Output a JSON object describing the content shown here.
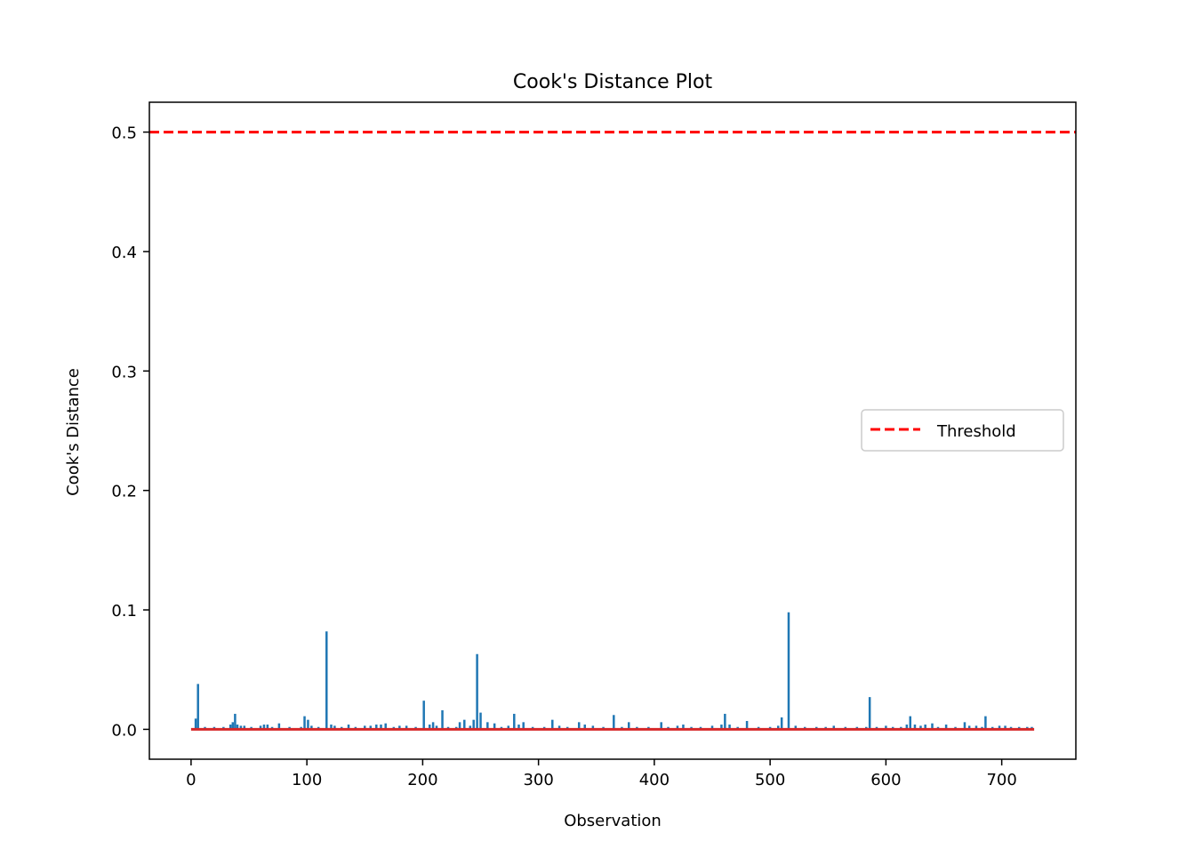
{
  "chart_data": {
    "type": "bar",
    "title": "Cook's Distance Plot",
    "xlabel": "Observation",
    "ylabel": "Cook's Distance",
    "xlim": [
      -36,
      764
    ],
    "ylim": [
      -0.025,
      0.525
    ],
    "x_ticks": [
      0,
      100,
      200,
      300,
      400,
      500,
      600,
      700
    ],
    "y_ticks": [
      0.0,
      0.1,
      0.2,
      0.3,
      0.4,
      0.5
    ],
    "grid": false,
    "legend": {
      "placement": "center-right",
      "entries": [
        "Threshold"
      ]
    },
    "threshold": {
      "name": "Threshold",
      "value": 0.5,
      "style": "dashed",
      "color": "#ff0000"
    },
    "baseline": {
      "from": 0,
      "to": 728,
      "value": 0.0,
      "color": "#d62728"
    },
    "stem_color": "#1f77b4",
    "observations": [
      {
        "x": 4,
        "y": 0.009
      },
      {
        "x": 6,
        "y": 0.038
      },
      {
        "x": 12,
        "y": 0.002
      },
      {
        "x": 20,
        "y": 0.002
      },
      {
        "x": 28,
        "y": 0.002
      },
      {
        "x": 34,
        "y": 0.004
      },
      {
        "x": 36,
        "y": 0.006
      },
      {
        "x": 38,
        "y": 0.013
      },
      {
        "x": 40,
        "y": 0.004
      },
      {
        "x": 43,
        "y": 0.003
      },
      {
        "x": 46,
        "y": 0.003
      },
      {
        "x": 52,
        "y": 0.002
      },
      {
        "x": 60,
        "y": 0.003
      },
      {
        "x": 63,
        "y": 0.004
      },
      {
        "x": 66,
        "y": 0.004
      },
      {
        "x": 70,
        "y": 0.002
      },
      {
        "x": 76,
        "y": 0.005
      },
      {
        "x": 85,
        "y": 0.002
      },
      {
        "x": 95,
        "y": 0.002
      },
      {
        "x": 98,
        "y": 0.011
      },
      {
        "x": 101,
        "y": 0.008
      },
      {
        "x": 104,
        "y": 0.003
      },
      {
        "x": 110,
        "y": 0.002
      },
      {
        "x": 117,
        "y": 0.082
      },
      {
        "x": 121,
        "y": 0.004
      },
      {
        "x": 124,
        "y": 0.003
      },
      {
        "x": 130,
        "y": 0.002
      },
      {
        "x": 136,
        "y": 0.004
      },
      {
        "x": 142,
        "y": 0.002
      },
      {
        "x": 150,
        "y": 0.003
      },
      {
        "x": 155,
        "y": 0.003
      },
      {
        "x": 160,
        "y": 0.004
      },
      {
        "x": 164,
        "y": 0.004
      },
      {
        "x": 168,
        "y": 0.005
      },
      {
        "x": 175,
        "y": 0.002
      },
      {
        "x": 180,
        "y": 0.003
      },
      {
        "x": 186,
        "y": 0.003
      },
      {
        "x": 194,
        "y": 0.002
      },
      {
        "x": 201,
        "y": 0.024
      },
      {
        "x": 206,
        "y": 0.004
      },
      {
        "x": 209,
        "y": 0.006
      },
      {
        "x": 212,
        "y": 0.003
      },
      {
        "x": 217,
        "y": 0.016
      },
      {
        "x": 222,
        "y": 0.002
      },
      {
        "x": 229,
        "y": 0.002
      },
      {
        "x": 232,
        "y": 0.006
      },
      {
        "x": 236,
        "y": 0.008
      },
      {
        "x": 241,
        "y": 0.003
      },
      {
        "x": 244,
        "y": 0.008
      },
      {
        "x": 247,
        "y": 0.063
      },
      {
        "x": 250,
        "y": 0.014
      },
      {
        "x": 256,
        "y": 0.006
      },
      {
        "x": 262,
        "y": 0.005
      },
      {
        "x": 268,
        "y": 0.002
      },
      {
        "x": 274,
        "y": 0.003
      },
      {
        "x": 279,
        "y": 0.013
      },
      {
        "x": 283,
        "y": 0.004
      },
      {
        "x": 287,
        "y": 0.006
      },
      {
        "x": 295,
        "y": 0.002
      },
      {
        "x": 305,
        "y": 0.002
      },
      {
        "x": 312,
        "y": 0.008
      },
      {
        "x": 318,
        "y": 0.003
      },
      {
        "x": 325,
        "y": 0.002
      },
      {
        "x": 335,
        "y": 0.006
      },
      {
        "x": 340,
        "y": 0.004
      },
      {
        "x": 347,
        "y": 0.003
      },
      {
        "x": 356,
        "y": 0.002
      },
      {
        "x": 365,
        "y": 0.012
      },
      {
        "x": 372,
        "y": 0.002
      },
      {
        "x": 378,
        "y": 0.006
      },
      {
        "x": 385,
        "y": 0.002
      },
      {
        "x": 395,
        "y": 0.002
      },
      {
        "x": 406,
        "y": 0.006
      },
      {
        "x": 412,
        "y": 0.002
      },
      {
        "x": 420,
        "y": 0.003
      },
      {
        "x": 425,
        "y": 0.004
      },
      {
        "x": 432,
        "y": 0.002
      },
      {
        "x": 440,
        "y": 0.002
      },
      {
        "x": 450,
        "y": 0.003
      },
      {
        "x": 458,
        "y": 0.004
      },
      {
        "x": 461,
        "y": 0.013
      },
      {
        "x": 465,
        "y": 0.004
      },
      {
        "x": 472,
        "y": 0.002
      },
      {
        "x": 480,
        "y": 0.007
      },
      {
        "x": 490,
        "y": 0.002
      },
      {
        "x": 500,
        "y": 0.002
      },
      {
        "x": 507,
        "y": 0.003
      },
      {
        "x": 510,
        "y": 0.01
      },
      {
        "x": 516,
        "y": 0.098
      },
      {
        "x": 522,
        "y": 0.003
      },
      {
        "x": 530,
        "y": 0.002
      },
      {
        "x": 540,
        "y": 0.002
      },
      {
        "x": 548,
        "y": 0.002
      },
      {
        "x": 555,
        "y": 0.003
      },
      {
        "x": 565,
        "y": 0.002
      },
      {
        "x": 575,
        "y": 0.002
      },
      {
        "x": 583,
        "y": 0.002
      },
      {
        "x": 586,
        "y": 0.027
      },
      {
        "x": 592,
        "y": 0.002
      },
      {
        "x": 600,
        "y": 0.003
      },
      {
        "x": 606,
        "y": 0.002
      },
      {
        "x": 613,
        "y": 0.002
      },
      {
        "x": 618,
        "y": 0.004
      },
      {
        "x": 621,
        "y": 0.011
      },
      {
        "x": 625,
        "y": 0.004
      },
      {
        "x": 630,
        "y": 0.003
      },
      {
        "x": 634,
        "y": 0.004
      },
      {
        "x": 640,
        "y": 0.005
      },
      {
        "x": 645,
        "y": 0.002
      },
      {
        "x": 652,
        "y": 0.004
      },
      {
        "x": 660,
        "y": 0.002
      },
      {
        "x": 668,
        "y": 0.006
      },
      {
        "x": 672,
        "y": 0.003
      },
      {
        "x": 678,
        "y": 0.003
      },
      {
        "x": 683,
        "y": 0.002
      },
      {
        "x": 686,
        "y": 0.011
      },
      {
        "x": 692,
        "y": 0.002
      },
      {
        "x": 698,
        "y": 0.003
      },
      {
        "x": 703,
        "y": 0.003
      },
      {
        "x": 708,
        "y": 0.002
      },
      {
        "x": 715,
        "y": 0.002
      },
      {
        "x": 722,
        "y": 0.002
      },
      {
        "x": 726,
        "y": 0.002
      }
    ]
  }
}
